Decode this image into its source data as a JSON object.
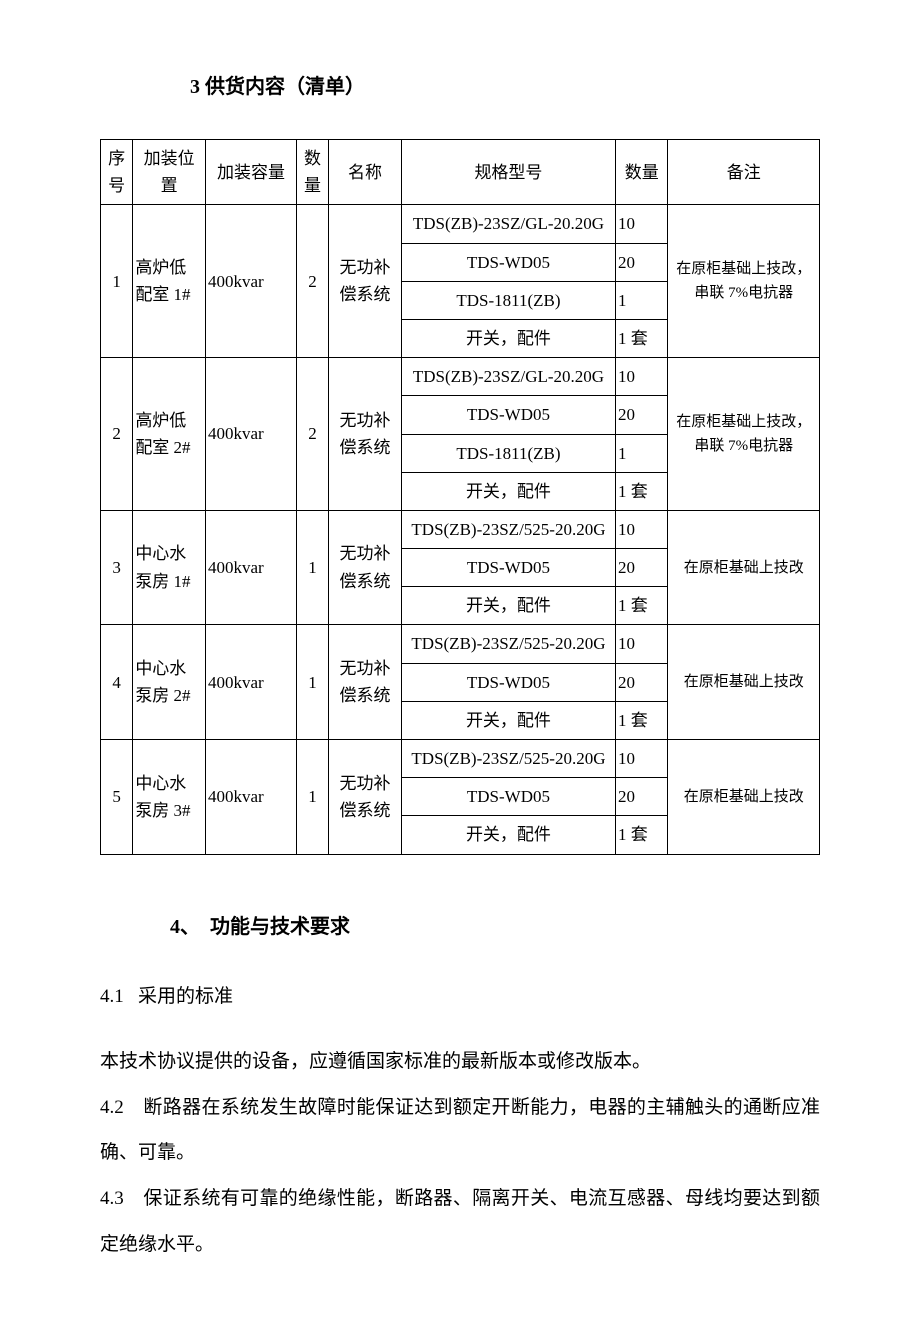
{
  "section3": {
    "title": "3 供货内容（清单）",
    "headers": {
      "idx": "序号",
      "location": "加装位置",
      "capacity": "加装容量",
      "qty1": "数量",
      "name": "名称",
      "spec": "规格型号",
      "qty2": "数量",
      "remark": "备注"
    },
    "groups": [
      {
        "idx": "1",
        "location": "高炉低配室 1#",
        "capacity": "400kvar",
        "qty1": "2",
        "name": "无功补偿系统",
        "remark": "在原柜基础上技改，串联 7%电抗器",
        "rows": [
          {
            "spec": "TDS(ZB)-23SZ/GL-20.20G",
            "qty": "10"
          },
          {
            "spec": "TDS-WD05",
            "qty": "20"
          },
          {
            "spec": "TDS-1811(ZB)",
            "qty": "1"
          },
          {
            "spec": "开关，配件",
            "qty": "1 套"
          }
        ]
      },
      {
        "idx": "2",
        "location": "高炉低配室 2#",
        "capacity": "400kvar",
        "qty1": "2",
        "name": "无功补偿系统",
        "remark": "在原柜基础上技改，串联 7%电抗器",
        "rows": [
          {
            "spec": "TDS(ZB)-23SZ/GL-20.20G",
            "qty": "10"
          },
          {
            "spec": "TDS-WD05",
            "qty": "20"
          },
          {
            "spec": "TDS-1811(ZB)",
            "qty": "1"
          },
          {
            "spec": "开关，配件",
            "qty": "1 套"
          }
        ]
      },
      {
        "idx": "3",
        "location": "中心水泵房 1#",
        "capacity": "400kvar",
        "qty1": "1",
        "name": "无功补偿系统",
        "remark": "在原柜基础上技改",
        "rows": [
          {
            "spec": "TDS(ZB)-23SZ/525-20.20G",
            "qty": "10"
          },
          {
            "spec": "TDS-WD05",
            "qty": "20"
          },
          {
            "spec": "开关，配件",
            "qty": "1 套"
          }
        ]
      },
      {
        "idx": "4",
        "location": "中心水泵房 2#",
        "capacity": "400kvar",
        "qty1": "1",
        "name": "无功补偿系统",
        "remark": "在原柜基础上技改",
        "rows": [
          {
            "spec": "TDS(ZB)-23SZ/525-20.20G",
            "qty": "10"
          },
          {
            "spec": "TDS-WD05",
            "qty": "20"
          },
          {
            "spec": "开关，配件",
            "qty": "1 套"
          }
        ]
      },
      {
        "idx": "5",
        "location": "中心水泵房 3#",
        "capacity": "400kvar",
        "qty1": "1",
        "name": "无功补偿系统",
        "remark": "在原柜基础上技改",
        "rows": [
          {
            "spec": "TDS(ZB)-23SZ/525-20.20G",
            "qty": "10"
          },
          {
            "spec": "TDS-WD05",
            "qty": "20"
          },
          {
            "spec": "开关，配件",
            "qty": "1 套"
          }
        ]
      }
    ]
  },
  "section4": {
    "title": "4、　功能与技术要求",
    "p41_label": "4.1",
    "p41_title": "采用的标准",
    "p41_body": "本技术协议提供的设备，应遵循国家标准的最新版本或修改版本。",
    "p42": "4.2　断路器在系统发生故障时能保证达到额定开断能力，电器的主辅触头的通断应准确、可靠。",
    "p43": "4.3　保证系统有可靠的绝缘性能，断路器、隔离开关、电流互感器、母线均要达到额定绝缘水平。"
  }
}
